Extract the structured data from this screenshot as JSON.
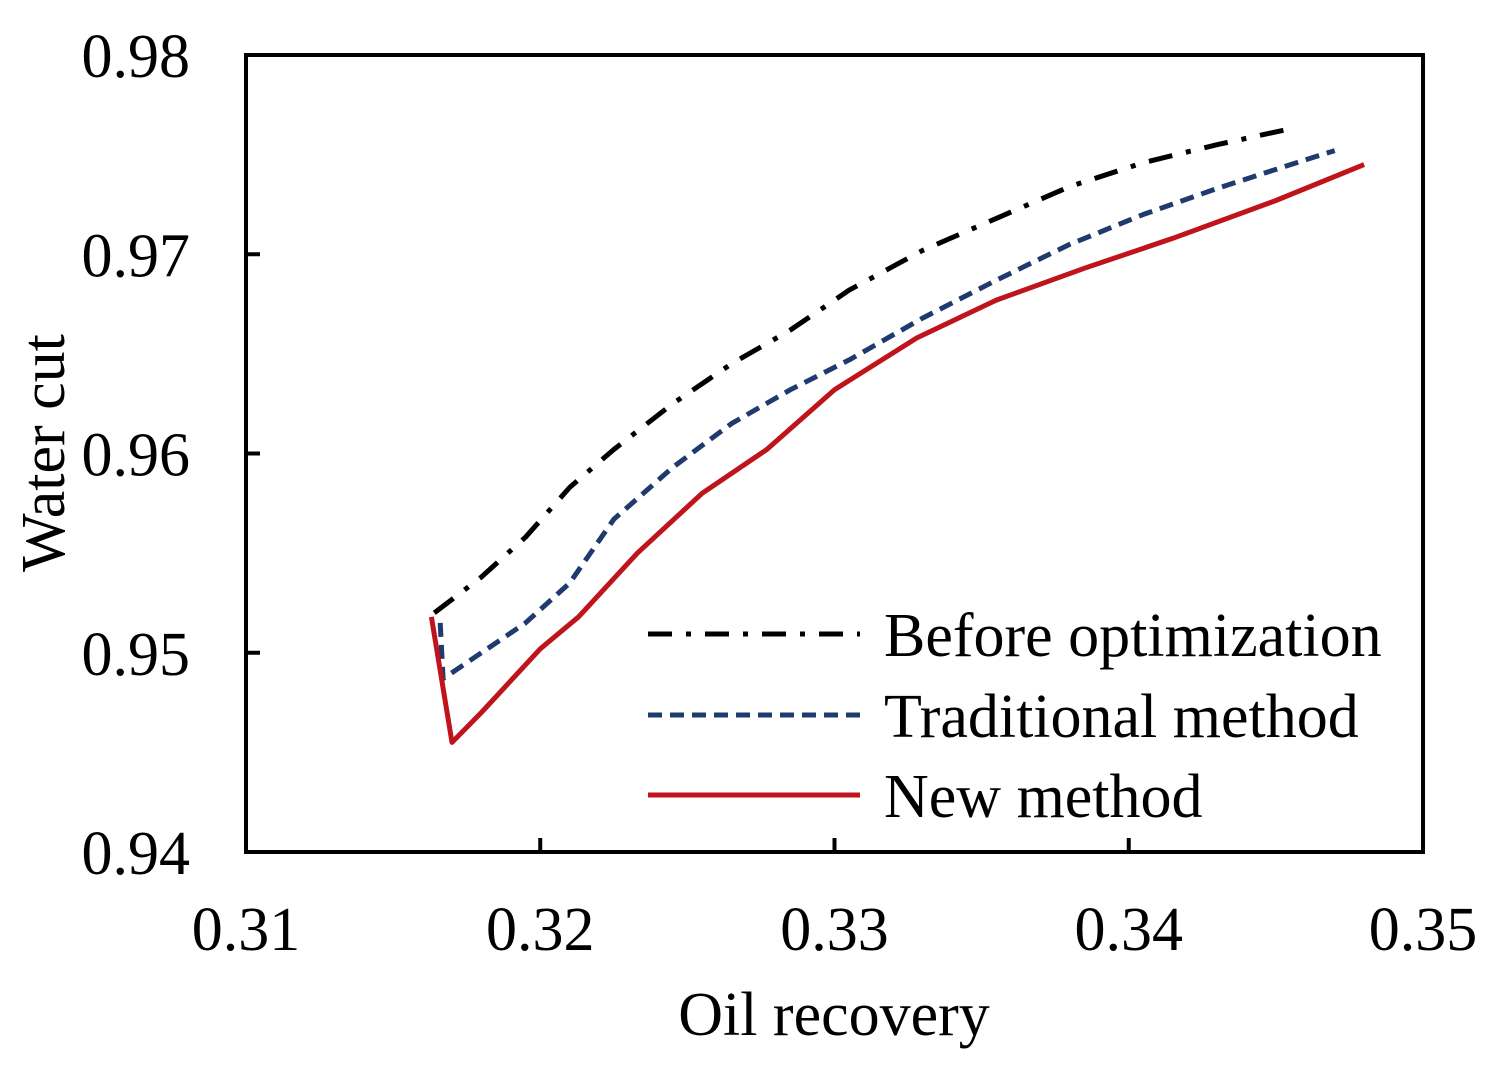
{
  "chart_data": {
    "type": "line",
    "title": "",
    "xlabel": "Oil recovery",
    "ylabel": "Water cut",
    "xlim": [
      0.31,
      0.35
    ],
    "ylim": [
      0.94,
      0.98
    ],
    "xticks": [
      "0.31",
      "0.32",
      "0.33",
      "0.34",
      "0.35"
    ],
    "yticks": [
      "0.94",
      "0.95",
      "0.96",
      "0.97",
      "0.98"
    ],
    "grid": false,
    "legend_position": "bottom-right",
    "series": [
      {
        "name": "Before optimization",
        "color": "#000000",
        "style": "dashdot",
        "x": [
          0.3164,
          0.318,
          0.3195,
          0.321,
          0.3225,
          0.3245,
          0.3265,
          0.3285,
          0.3305,
          0.333,
          0.3355,
          0.338,
          0.3405,
          0.343,
          0.3455
        ],
        "y": [
          0.952,
          0.9538,
          0.9558,
          0.9583,
          0.9602,
          0.9625,
          0.9645,
          0.9662,
          0.9682,
          0.9702,
          0.9718,
          0.9734,
          0.9746,
          0.9755,
          0.9763
        ]
      },
      {
        "name": "Traditional method",
        "color": "#1f3a6e",
        "style": "dashed",
        "x": [
          0.3166,
          0.3167,
          0.318,
          0.3195,
          0.321,
          0.3225,
          0.3245,
          0.3265,
          0.3285,
          0.3305,
          0.333,
          0.3355,
          0.338,
          0.3405,
          0.343,
          0.3455,
          0.347
        ],
        "y": [
          0.9515,
          0.9487,
          0.95,
          0.9515,
          0.9535,
          0.9567,
          0.9593,
          0.9615,
          0.9632,
          0.9647,
          0.9668,
          0.9687,
          0.9705,
          0.972,
          0.9733,
          0.9745,
          0.9752
        ]
      },
      {
        "name": "New method",
        "color": "#c0141c",
        "style": "solid",
        "x": [
          0.3163,
          0.317,
          0.318,
          0.32,
          0.3213,
          0.3233,
          0.3255,
          0.3277,
          0.33,
          0.3328,
          0.3355,
          0.3385,
          0.3415,
          0.345,
          0.348
        ],
        "y": [
          0.9518,
          0.9455,
          0.947,
          0.9502,
          0.9518,
          0.955,
          0.958,
          0.9602,
          0.9632,
          0.9658,
          0.9677,
          0.9693,
          0.9708,
          0.9727,
          0.9745
        ]
      }
    ]
  }
}
